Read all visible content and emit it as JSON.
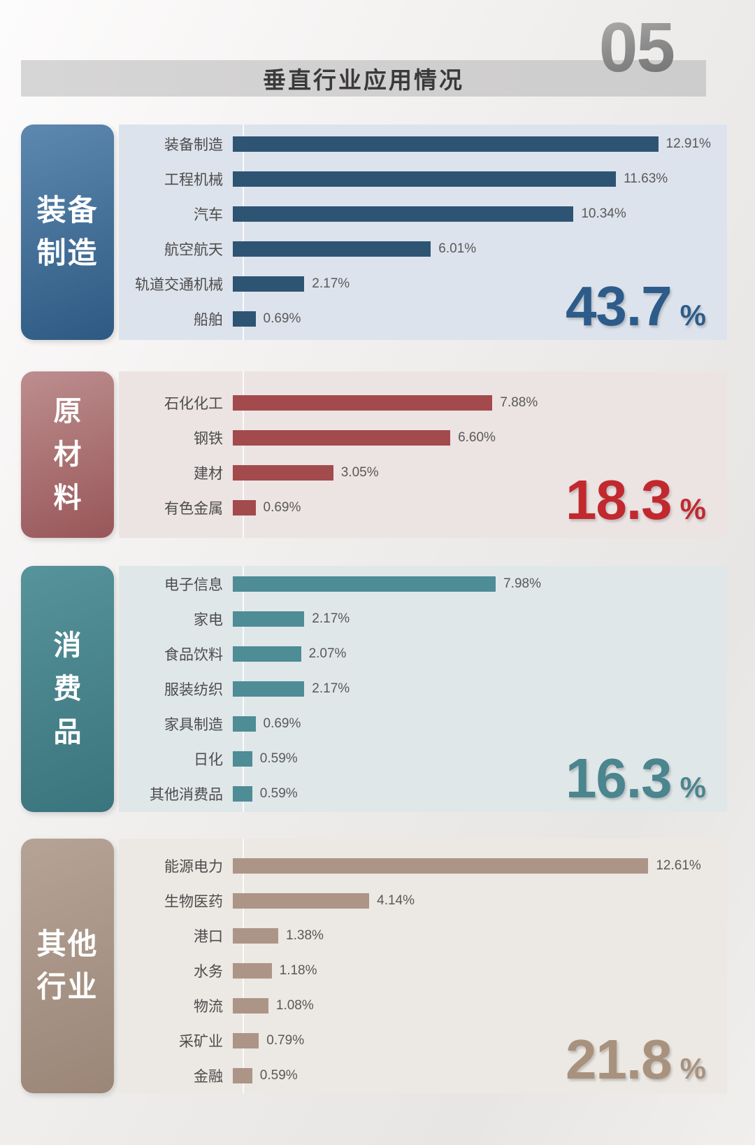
{
  "header": {
    "page_number": "05",
    "title": "垂直行业应用情况"
  },
  "chart_data": {
    "type": "bar",
    "orientation": "horizontal",
    "title": "垂直行业应用情况",
    "unit": "%",
    "axis_max_estimate": 15,
    "grid": false,
    "groups": [
      {
        "group_label": "装备制造",
        "group_label_lines": [
          "装备",
          "制造"
        ],
        "group_total": "43.7",
        "categories": [
          "装备制造",
          "工程机械",
          "汽车",
          "航空航天",
          "轨道交通机械",
          "船舶"
        ],
        "values": [
          12.91,
          11.63,
          10.34,
          6.01,
          2.17,
          0.69
        ],
        "value_labels": [
          "12.91%",
          "11.63%",
          "10.34%",
          "6.01%",
          "2.17%",
          "0.69%"
        ],
        "colors": {
          "bar": "#2e5474",
          "sidebar_top": "#5d88b0",
          "sidebar_bottom": "#2d5a82",
          "panel_bg": "#dde3ec",
          "total": "#2d5c8a"
        }
      },
      {
        "group_label": "原材料",
        "group_label_lines": [
          "原",
          "材",
          "料"
        ],
        "group_total": "18.3",
        "categories": [
          "石化化工",
          "钢铁",
          "建材",
          "有色金属"
        ],
        "values": [
          7.88,
          6.6,
          3.05,
          0.69
        ],
        "value_labels": [
          "7.88%",
          "6.60%",
          "3.05%",
          "0.69%"
        ],
        "colors": {
          "bar": "#a34a4d",
          "sidebar_top": "#bd8e8e",
          "sidebar_bottom": "#985659",
          "panel_bg": "#ece3e3",
          "total": "#c1292f"
        }
      },
      {
        "group_label": "消费品",
        "group_label_lines": [
          "消",
          "费",
          "品"
        ],
        "group_total": "16.3",
        "categories": [
          "电子信息",
          "家电",
          "食品饮料",
          "服装纺织",
          "家具制造",
          "日化",
          "其他消费品"
        ],
        "values": [
          7.98,
          2.17,
          2.07,
          2.17,
          0.69,
          0.59,
          0.59
        ],
        "value_labels": [
          "7.98%",
          "2.17%",
          "2.07%",
          "2.17%",
          "0.69%",
          "0.59%",
          "0.59%"
        ],
        "colors": {
          "bar": "#4e8c96",
          "sidebar_top": "#57939b",
          "sidebar_bottom": "#3a747d",
          "panel_bg": "#e0e7e9",
          "total": "#4b858e"
        }
      },
      {
        "group_label": "其他行业",
        "group_label_lines": [
          "其他",
          "行业"
        ],
        "group_total": "21.8",
        "categories": [
          "能源电力",
          "生物医药",
          "港口",
          "水务",
          "物流",
          "采矿业",
          "金融"
        ],
        "values": [
          12.61,
          4.14,
          1.38,
          1.18,
          1.08,
          0.79,
          0.59
        ],
        "value_labels": [
          "12.61%",
          "4.14%",
          "1.38%",
          "1.18%",
          "1.08%",
          "0.79%",
          "0.59%"
        ],
        "colors": {
          "bar": "#ac9587",
          "sidebar_top": "#b5a396",
          "sidebar_bottom": "#9b8677",
          "panel_bg": "#ece8e3",
          "total": "#a8927e"
        }
      }
    ]
  }
}
